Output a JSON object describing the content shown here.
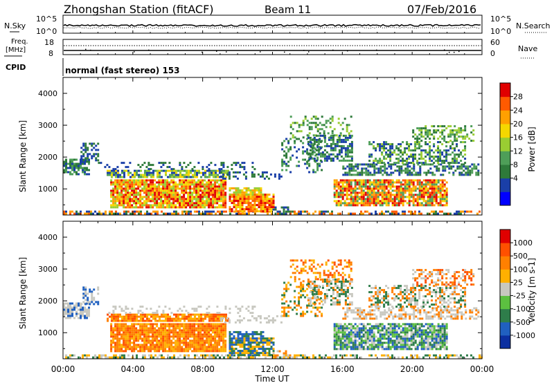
{
  "header": {
    "station": "Zhongshan Station (fitACF)",
    "beam": "Beam 11",
    "date": "07/Feb/2016"
  },
  "nsky_panel": {
    "left_label": "N.Sky",
    "left_ticks": [
      "10^5",
      "10^0"
    ],
    "right_label": "N.Search",
    "right_ticks": [
      "10^5",
      "10^0"
    ]
  },
  "freq_panel": {
    "left_label_1": "Freq.",
    "left_label_2": "[MHz]",
    "left_ticks": [
      "18",
      "8"
    ],
    "right_label": "Nave",
    "right_ticks": [
      "60",
      "0"
    ]
  },
  "cpid_panel": {
    "label": "CPID",
    "text": "normal (fast stereo) 153"
  },
  "chart_data": [
    {
      "type": "heatmap",
      "title": "",
      "ylabel": "Slant Range [km]",
      "ylim": [
        180,
        4500
      ],
      "y_ticks": [
        "4000",
        "3000",
        "2000",
        "1000"
      ],
      "xlim_hours": [
        0,
        24
      ],
      "colorbar": {
        "label": "Power [dB]",
        "ticks": [
          "28",
          "24",
          "20",
          "16",
          "12",
          "8",
          "4"
        ],
        "colors": [
          "#0000ff",
          "#1a3fa8",
          "#2e7a3a",
          "#4e9e58",
          "#9acd32",
          "#f5d700",
          "#ffa000",
          "#ff5a00",
          "#e00000"
        ]
      }
    },
    {
      "type": "heatmap",
      "title": "",
      "ylabel": "Slant Range [km]",
      "ylim": [
        180,
        4500
      ],
      "y_ticks": [
        "4000",
        "3000",
        "2000",
        "1000"
      ],
      "xlim_hours": [
        0,
        24
      ],
      "xlabel": "Time UT",
      "x_ticks": [
        "00:00",
        "04:00",
        "08:00",
        "12:00",
        "16:00",
        "20:00",
        "00:00"
      ],
      "colorbar": {
        "label": "Velocity [m s-1]",
        "ticks": [
          "1000",
          "500",
          "100",
          "25",
          "-25",
          "-100",
          "-500",
          "-1000"
        ],
        "colors": [
          "#0b2fa0",
          "#2060c0",
          "#2e7d4a",
          "#5cc040",
          "#c8c8c0",
          "#ffb000",
          "#ff8000",
          "#ff5000",
          "#e00000"
        ]
      }
    }
  ]
}
